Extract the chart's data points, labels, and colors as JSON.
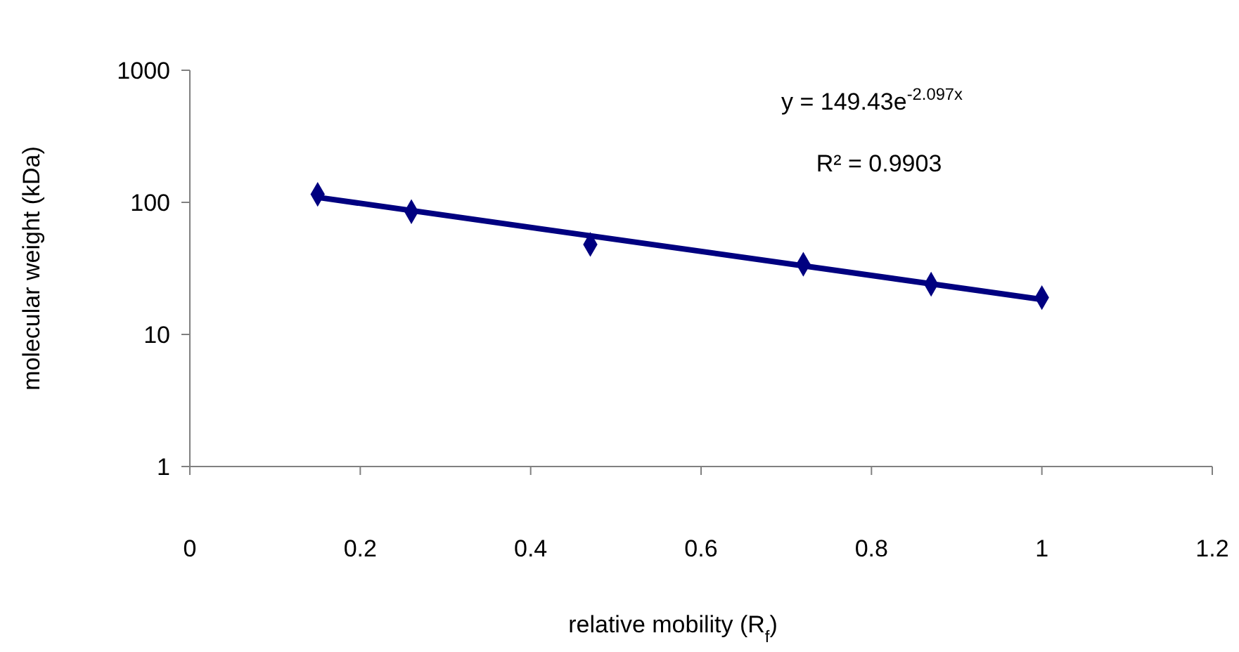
{
  "chart_data": {
    "type": "scatter",
    "xlabel": "relative mobility (R$_{f}$)",
    "ylabel": "molecular weight (kDa)",
    "xlim": [
      0,
      1.2
    ],
    "xticks": [
      0,
      0.2,
      0.4,
      0.6,
      0.8,
      1,
      1.2
    ],
    "ylim": [
      1,
      1000
    ],
    "yticks": [
      1,
      10,
      100,
      1000
    ],
    "log": "y",
    "grid": false,
    "series": [
      {
        "color": "#000080",
        "marker": "diamond",
        "x": [
          0.15,
          0.26,
          0.47,
          0.72,
          0.87,
          1.0
        ],
        "values": [
          115,
          85,
          48,
          34,
          24,
          19
        ]
      },
      {
        "type": "line",
        "color": "#000080",
        "marker": "none",
        "line_style": "solid",
        "x": [
          0.15,
          1.0
        ],
        "values": [
          109.1,
          18.4
        ]
      }
    ],
    "annotations": [
      "y = 149.43e$^{-2.097x}$",
      "R² = 0.9903"
    ]
  }
}
